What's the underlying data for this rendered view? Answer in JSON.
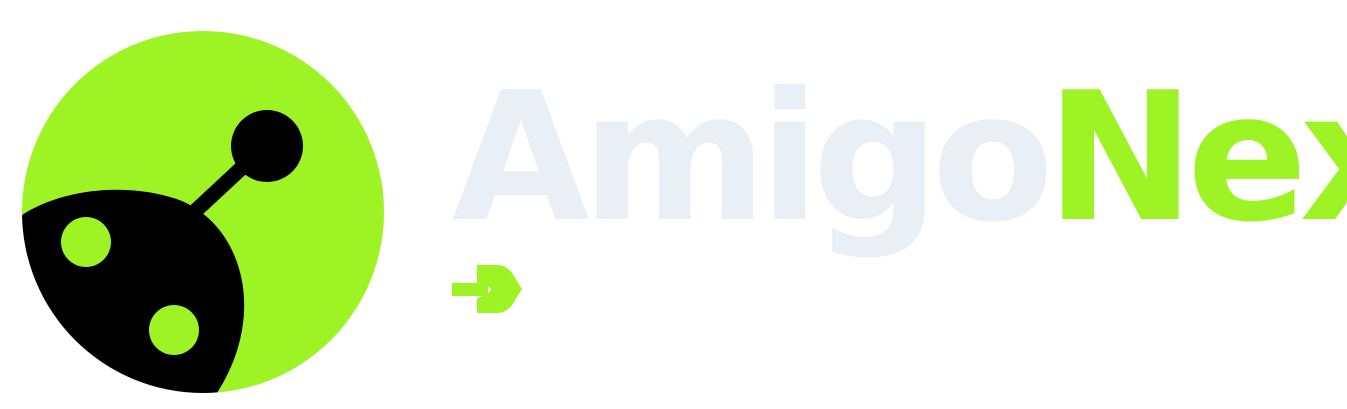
{
  "brand": {
    "name_part_1": "Amigo",
    "name_part_2": "Nex",
    "logo_icon": "bug-robot-circle-icon",
    "accent_icon": "arrow-right-icon"
  },
  "colors": {
    "background": "#FFFFFF",
    "primary_green": "#9EF324",
    "dark": "#000000",
    "light_text": "#E8F0F5"
  }
}
